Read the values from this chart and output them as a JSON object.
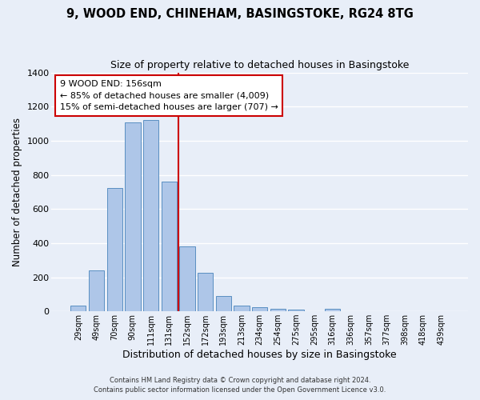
{
  "title": "9, WOOD END, CHINEHAM, BASINGSTOKE, RG24 8TG",
  "subtitle": "Size of property relative to detached houses in Basingstoke",
  "xlabel": "Distribution of detached houses by size in Basingstoke",
  "ylabel": "Number of detached properties",
  "bar_labels": [
    "29sqm",
    "49sqm",
    "70sqm",
    "90sqm",
    "111sqm",
    "131sqm",
    "152sqm",
    "172sqm",
    "193sqm",
    "213sqm",
    "234sqm",
    "254sqm",
    "275sqm",
    "295sqm",
    "316sqm",
    "336sqm",
    "357sqm",
    "377sqm",
    "398sqm",
    "418sqm",
    "439sqm"
  ],
  "bar_values": [
    35,
    240,
    725,
    1105,
    1120,
    760,
    380,
    228,
    92,
    32,
    22,
    17,
    12,
    0,
    15,
    0,
    0,
    0,
    0,
    0,
    0
  ],
  "bar_color": "#aec6e8",
  "bar_edge_color": "#5a8fc2",
  "background_color": "#e8eef8",
  "grid_color": "#ffffff",
  "vline_color": "#cc0000",
  "annotation_line1": "9 WOOD END: 156sqm",
  "annotation_line2": "← 85% of detached houses are smaller (4,009)",
  "annotation_line3": "15% of semi-detached houses are larger (707) →",
  "annotation_box_facecolor": "#ffffff",
  "annotation_box_edgecolor": "#cc0000",
  "ylim": [
    0,
    1400
  ],
  "yticks": [
    0,
    200,
    400,
    600,
    800,
    1000,
    1200,
    1400
  ],
  "footer_line1": "Contains HM Land Registry data © Crown copyright and database right 2024.",
  "footer_line2": "Contains public sector information licensed under the Open Government Licence v3.0."
}
